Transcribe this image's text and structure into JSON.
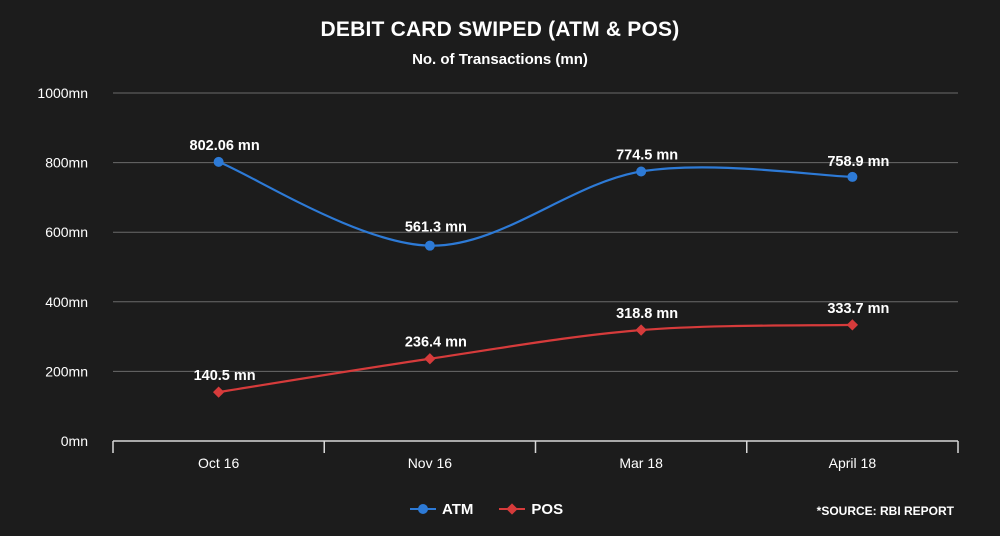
{
  "colors": {
    "background": "#1c1c1c",
    "atm": "#2d7ad6",
    "pos": "#d63b3b",
    "grid": "#6a6a6a",
    "axis": "#d8d8d8",
    "text": "#ffffff"
  },
  "source": "*SOURCE: RBI REPORT",
  "chart_data": {
    "type": "line",
    "title": "DEBIT CARD SWIPED (ATM & POS)",
    "subtitle": "No. of Transactions (mn)",
    "categories": [
      "Oct 16",
      "Nov 16",
      "Mar 18",
      "April 18"
    ],
    "y_ticks": [
      "0mn",
      "200mn",
      "400mn",
      "600mn",
      "800mn",
      "1000mn"
    ],
    "ylim": [
      0,
      1000
    ],
    "grid": true,
    "legend_position": "bottom",
    "series": [
      {
        "name": "ATM",
        "values": [
          802.06,
          561.3,
          774.5,
          758.9
        ],
        "labels": [
          "802.06 mn",
          "561.3 mn",
          "774.5 mn",
          "758.9 mn"
        ],
        "marker": "circle",
        "smooth": true
      },
      {
        "name": "POS",
        "values": [
          140.5,
          236.4,
          318.8,
          333.7
        ],
        "labels": [
          "140.5 mn",
          "236.4 mn",
          "318.8 mn",
          "333.7 mn"
        ],
        "marker": "diamond",
        "smooth": true
      }
    ]
  }
}
